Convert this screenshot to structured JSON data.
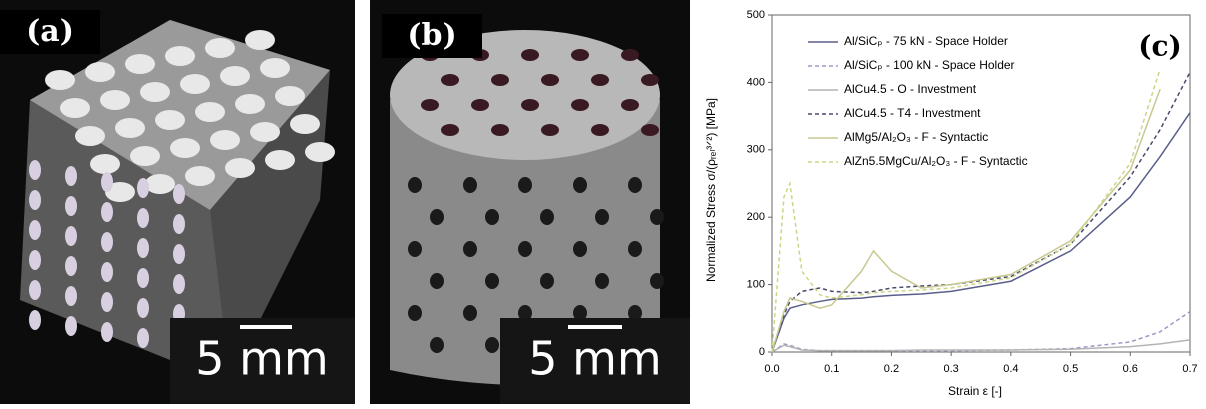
{
  "panels": [
    {
      "label": "(a)",
      "scale_bar": "5 mm"
    },
    {
      "label": "(b)",
      "scale_bar": "5 mm"
    }
  ],
  "chart_data": {
    "type": "line",
    "annotation": "(c)",
    "x_label": "Strain ε [-]",
    "y_label": "Normalized Stress σ/(ρᵣₑₗ³ᐟ²) [MPa]",
    "x": [
      0,
      0.02,
      0.03,
      0.05,
      0.08,
      0.1,
      0.15,
      0.17,
      0.2,
      0.25,
      0.3,
      0.4,
      0.5,
      0.6,
      0.65,
      0.7
    ],
    "xlim": [
      0,
      0.7
    ],
    "xticks": [
      {
        "value": 0,
        "label": "0.0"
      },
      0.1,
      0.2,
      0.3,
      0.4,
      0.5,
      0.6,
      0.7
    ],
    "ylim": [
      0,
      500
    ],
    "yticks": [
      0,
      100,
      200,
      300,
      400,
      500
    ],
    "legend": "upper right",
    "series": [
      {
        "name": "Al/SiCₚ - 75 kN - Space Holder",
        "color": "#5a5f8a",
        "style": "solid",
        "values": [
          0,
          50,
          65,
          70,
          75,
          78,
          80,
          82,
          84,
          86,
          90,
          105,
          150,
          230,
          290,
          355
        ]
      },
      {
        "name": "Al/SiCₚ - 100 kN - Space Holder",
        "color": "#a596c8",
        "style": "dashed",
        "values": [
          0,
          12,
          10,
          4,
          2,
          2,
          2,
          2,
          2,
          2,
          2,
          3,
          5,
          15,
          30,
          60
        ]
      },
      {
        "name": "AlCu4.5 - O - Investment",
        "color": "#b4b4b4",
        "style": "solid",
        "values": [
          0,
          10,
          8,
          3,
          2,
          2,
          2,
          2,
          2,
          3,
          3,
          3,
          4,
          8,
          12,
          18
        ]
      },
      {
        "name": "AlCu4.5 - T4 - Investment",
        "color": "#4a4a6a",
        "style": "dashed",
        "values": [
          0,
          55,
          75,
          90,
          95,
          90,
          88,
          90,
          95,
          98,
          100,
          112,
          160,
          260,
          330,
          415
        ]
      },
      {
        "name": "AlMg5/Al₂O₃ - F - Syntactic",
        "color": "#c8c890",
        "style": "solid",
        "values": [
          0,
          60,
          80,
          75,
          65,
          70,
          120,
          150,
          120,
          95,
          100,
          115,
          165,
          270,
          390,
          null
        ]
      },
      {
        "name": "AlZn5.5MgCu/Al₂O₃ - F - Syntactic",
        "color": "#cdd585",
        "style": "dashed",
        "values": [
          0,
          230,
          250,
          120,
          85,
          80,
          85,
          88,
          90,
          92,
          95,
          110,
          160,
          280,
          420,
          null
        ]
      }
    ]
  }
}
